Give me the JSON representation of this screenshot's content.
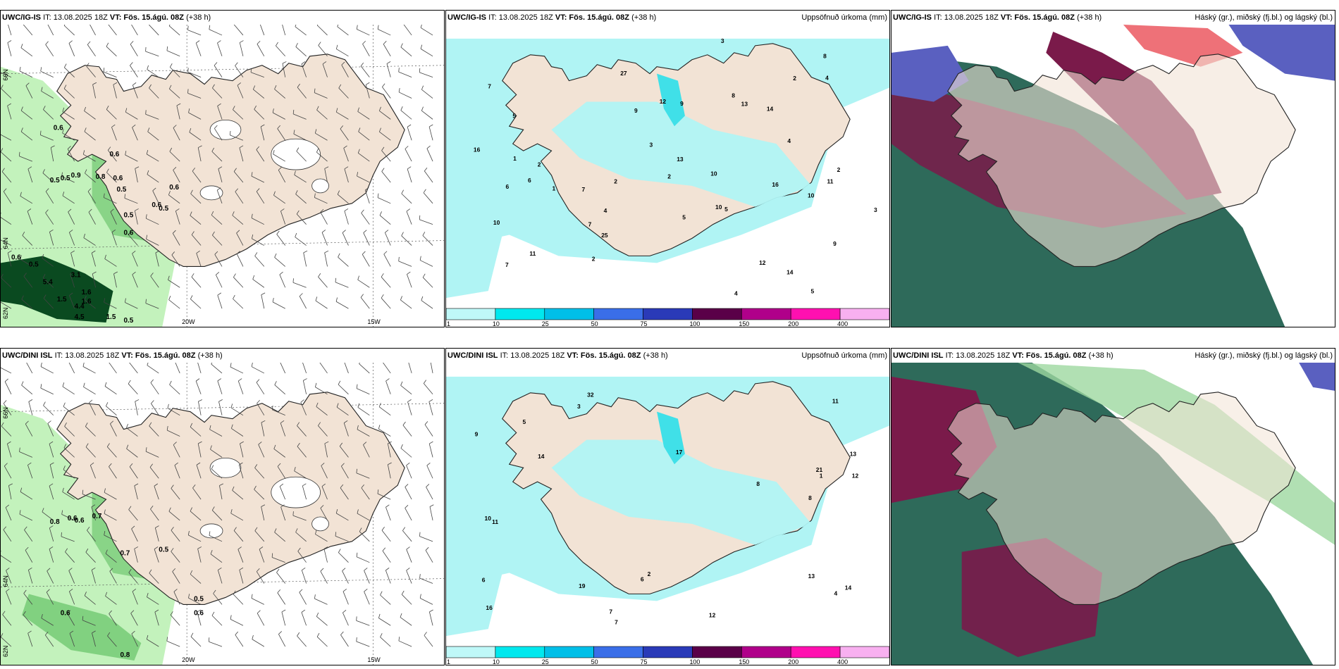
{
  "panels": [
    {
      "id": "ig-wind",
      "model": "UWC/IG-IS",
      "it_label": "IT: 13.08.2025 18Z",
      "vt_label": "VT: Fös. 15.ágú. 08Z",
      "lead": "(+38 h)",
      "title_right": "",
      "axis_left": [
        "66N",
        "64N",
        "62N"
      ],
      "axis_bottom": [
        "20W",
        "15W"
      ],
      "values": [
        "0.6",
        "0.6",
        "0.5",
        "0.5",
        "0.9",
        "0.8",
        "0.6",
        "0.5",
        "0.6",
        "0.6",
        "0.5",
        "0.5",
        "0.6",
        "0.6",
        "0.5",
        "5.4",
        "3.1",
        "1.5",
        "4.4",
        "1.6",
        "1.6",
        "4.5",
        "1.5",
        "0.5"
      ]
    },
    {
      "id": "ig-precip",
      "model": "UWC/IG-IS",
      "it_label": "IT: 13.08.2025 18Z",
      "vt_label": "VT: Fös. 15.ágú. 08Z",
      "lead": "(+38 h)",
      "title_right": "Uppsöfnuð úrkoma (mm)",
      "values": [
        "5",
        "6",
        "10",
        "7",
        "9",
        "5",
        "11",
        "7",
        "14",
        "12",
        "13",
        "14",
        "25",
        "27",
        "10",
        "10",
        "16",
        "13",
        "16",
        "7",
        "8",
        "9",
        "4",
        "3",
        "2",
        "1",
        "1",
        "2",
        "3",
        "4",
        "5",
        "6",
        "7",
        "8",
        "9",
        "10",
        "11",
        "12",
        "2",
        "4",
        "4",
        "5",
        "2",
        "3",
        "2",
        "2"
      ]
    },
    {
      "id": "ig-cloud",
      "model": "UWC/IG-IS",
      "it_label": "IT: 13.08.2025 18Z",
      "vt_label": "VT: Fös. 15.ágú. 08Z",
      "lead": "(+38 h)",
      "title_right": "Háský (gr.), miðský (fj.bl.) og lágský (bl.)"
    },
    {
      "id": "dini-wind",
      "model": "UWC/DINI ISL",
      "it_label": "IT: 13.08.2025 18Z",
      "vt_label": "VT: Fös. 15.ágú. 08Z",
      "lead": "(+38 h)",
      "title_right": "",
      "axis_left": [
        "66N",
        "64N",
        "62N"
      ],
      "axis_bottom": [
        "20W",
        "15W"
      ],
      "values": [
        "0.8",
        "0.6",
        "0.6",
        "0.7",
        "0.7",
        "0.5",
        "0.5",
        "0.6",
        "0.6",
        "0.8"
      ]
    },
    {
      "id": "dini-precip",
      "model": "UWC/DINI ISL",
      "it_label": "IT: 13.08.2025 18Z",
      "vt_label": "VT: Fös. 15.ágú. 08Z",
      "lead": "(+38 h)",
      "title_right": "Uppsöfnuð úrkoma (mm)",
      "values": [
        "13",
        "13",
        "14",
        "17",
        "16",
        "32",
        "21",
        "19",
        "11",
        "14",
        "12",
        "9",
        "8",
        "7",
        "6",
        "5",
        "4",
        "3",
        "2",
        "1",
        "10",
        "11",
        "12",
        "8",
        "7",
        "6"
      ]
    },
    {
      "id": "dini-cloud",
      "model": "UWC/DINI ISL",
      "it_label": "IT: 13.08.2025 18Z",
      "vt_label": "VT: Fös. 15.ágú. 08Z",
      "lead": "(+38 h)",
      "title_right": "Háský (gr.), miðský (fj.bl.) og lágský (bl.)"
    }
  ],
  "colorbar": {
    "ticks": [
      "1",
      "10",
      "25",
      "50",
      "75",
      "100",
      "150",
      "200",
      "400"
    ],
    "colors": [
      "#bff8f8",
      "#00e8ee",
      "#00bfe8",
      "#3a6ee8",
      "#2a3ab8",
      "#5a0048",
      "#b0008a",
      "#ff10b0",
      "#f8b0f0"
    ]
  },
  "colors": {
    "land": "#f2e3d5",
    "precip_light": "#b0f4f4",
    "precip_mid": "#40e0e8",
    "wind_light": "#b8f0b0",
    "wind_mid": "#70c870",
    "wind_dark": "#0a4a20",
    "cloud_high": "#7a1a4a",
    "cloud_mid": "#2e6a5a",
    "cloud_low": "#5a60c0"
  }
}
